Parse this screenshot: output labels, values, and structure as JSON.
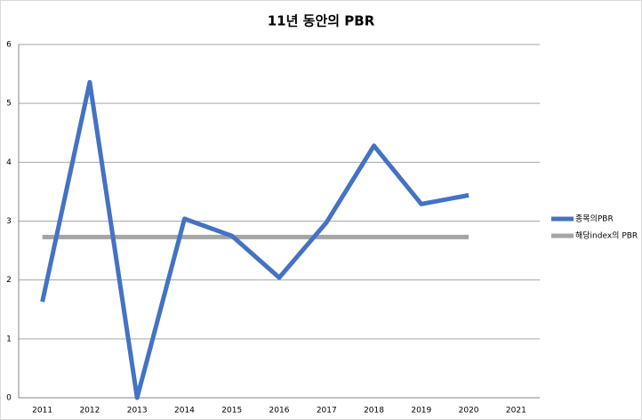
{
  "chart_data": {
    "type": "line",
    "title": "11년 동안의 PBR",
    "categories": [
      "2011",
      "2012",
      "2013",
      "2014",
      "2015",
      "2016",
      "2017",
      "2018",
      "2019",
      "2020",
      "2021"
    ],
    "series": [
      {
        "name": "종목의PBR",
        "color": "#4472c4",
        "values": [
          1.63,
          5.36,
          0,
          3.04,
          2.75,
          2.04,
          2.98,
          4.28,
          3.29,
          3.44,
          null
        ]
      },
      {
        "name": "해당index의 PBR",
        "color": "#a5a5a5",
        "values": [
          2.73,
          2.73,
          2.73,
          2.73,
          2.73,
          2.73,
          2.73,
          2.73,
          2.73,
          2.73,
          null
        ]
      }
    ],
    "ylim": [
      0,
      6
    ],
    "yticks": [
      0,
      1,
      2,
      3,
      4,
      5,
      6
    ],
    "grid": true,
    "legend": "right"
  }
}
